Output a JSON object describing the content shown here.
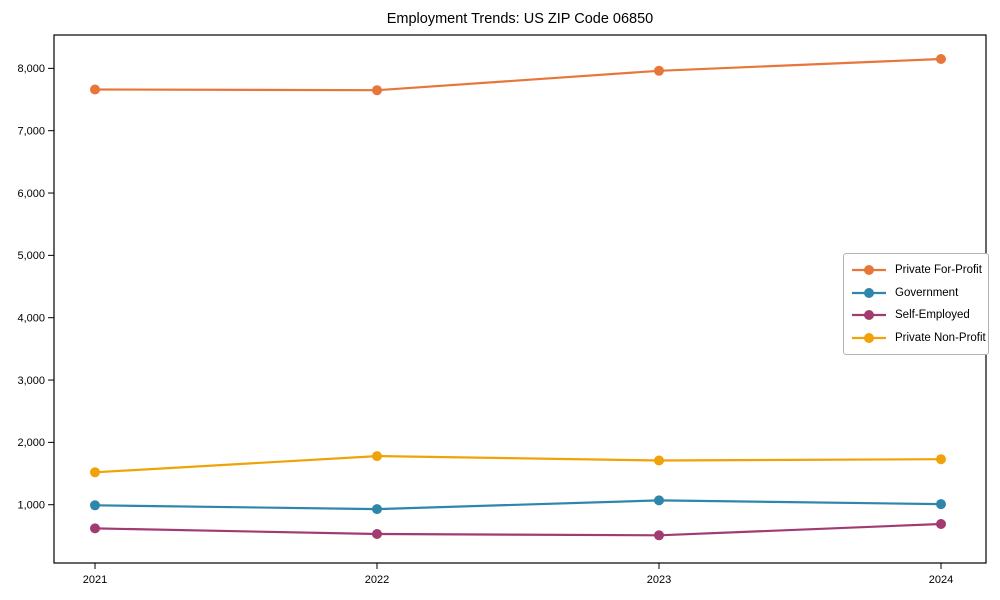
{
  "chart_data": {
    "type": "line",
    "title": "Employment Trends: US ZIP Code 06850",
    "categories": [
      "2021",
      "2022",
      "2023",
      "2024"
    ],
    "series": [
      {
        "name": "Private For-Profit",
        "color": "#E8763B",
        "values": [
          7660,
          7650,
          7960,
          8150
        ]
      },
      {
        "name": "Government",
        "color": "#2E86AB",
        "values": [
          990,
          930,
          1070,
          1010
        ]
      },
      {
        "name": "Self-Employed",
        "color": "#A23B72",
        "values": [
          620,
          530,
          510,
          690
        ]
      },
      {
        "name": "Private Non-Profit",
        "color": "#F1A208",
        "values": [
          1520,
          1780,
          1710,
          1730
        ]
      }
    ],
    "xlabel": "",
    "ylabel": "",
    "ylim": [
      65,
      8535
    ],
    "yticks": [
      1000,
      2000,
      3000,
      4000,
      5000,
      6000,
      7000,
      8000
    ],
    "ytick_labels": [
      "1,000",
      "2,000",
      "3,000",
      "4,000",
      "5,000",
      "6,000",
      "7,000",
      "8,000"
    ],
    "grid": false,
    "marker": "circle",
    "legend_position": "center-right",
    "axis_color": "#000000",
    "text_color": "#000000",
    "background_color": "#ffffff"
  }
}
